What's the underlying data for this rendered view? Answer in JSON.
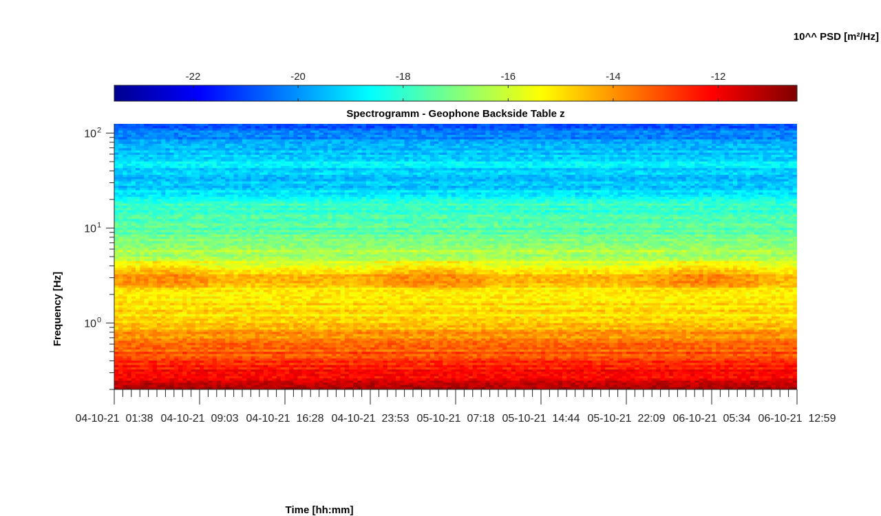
{
  "chart_data": {
    "type": "heatmap",
    "title": "Spectrogramm - Geophone Backside Table z",
    "xlabel": "Time [hh:mm]",
    "ylabel": "Frequency [Hz]",
    "colorbar_label": "10^^ PSD [m²/Hz]",
    "colormap": "jet",
    "colorbar": {
      "range": [
        -23.5,
        -10.5
      ],
      "ticks": [
        "-22",
        "-20",
        "-18",
        "-16",
        "-14",
        "-12"
      ],
      "tick_values": [
        -22,
        -20,
        -18,
        -16,
        -14,
        -12
      ]
    },
    "y_scale": "log",
    "ylim_hz": [
      0.2,
      125
    ],
    "y_ticks": [
      {
        "value": 100,
        "base": "10",
        "exp": "2"
      },
      {
        "value": 10,
        "base": "10",
        "exp": "1"
      },
      {
        "value": 1,
        "base": "10",
        "exp": "0"
      }
    ],
    "x_ticks": [
      "04-10-21  01:38",
      "04-10-21  09:03",
      "04-10-21  16:28",
      "04-10-21  23:53",
      "05-10-21  07:18",
      "05-10-21  14:44",
      "05-10-21  22:09",
      "06-10-21  05:34",
      "06-10-21  12:59"
    ],
    "approx_log10_psd_profile": [
      {
        "freq_hz": 0.2,
        "psd": -11.3
      },
      {
        "freq_hz": 0.4,
        "psd": -12.8
      },
      {
        "freq_hz": 0.7,
        "psd": -13.9
      },
      {
        "freq_hz": 1.0,
        "psd": -14.8
      },
      {
        "freq_hz": 2.0,
        "psd": -15.2
      },
      {
        "freq_hz": 3.0,
        "psd": -14.4
      },
      {
        "freq_hz": 5.0,
        "psd": -16.3
      },
      {
        "freq_hz": 10,
        "psd": -17.5
      },
      {
        "freq_hz": 20,
        "psd": -18.2
      },
      {
        "freq_hz": 28,
        "psd": -19.6
      },
      {
        "freq_hz": 50,
        "psd": -18.9
      },
      {
        "freq_hz": 100,
        "psd": -20.4
      },
      {
        "freq_hz": 125,
        "psd": -21.0
      }
    ]
  }
}
